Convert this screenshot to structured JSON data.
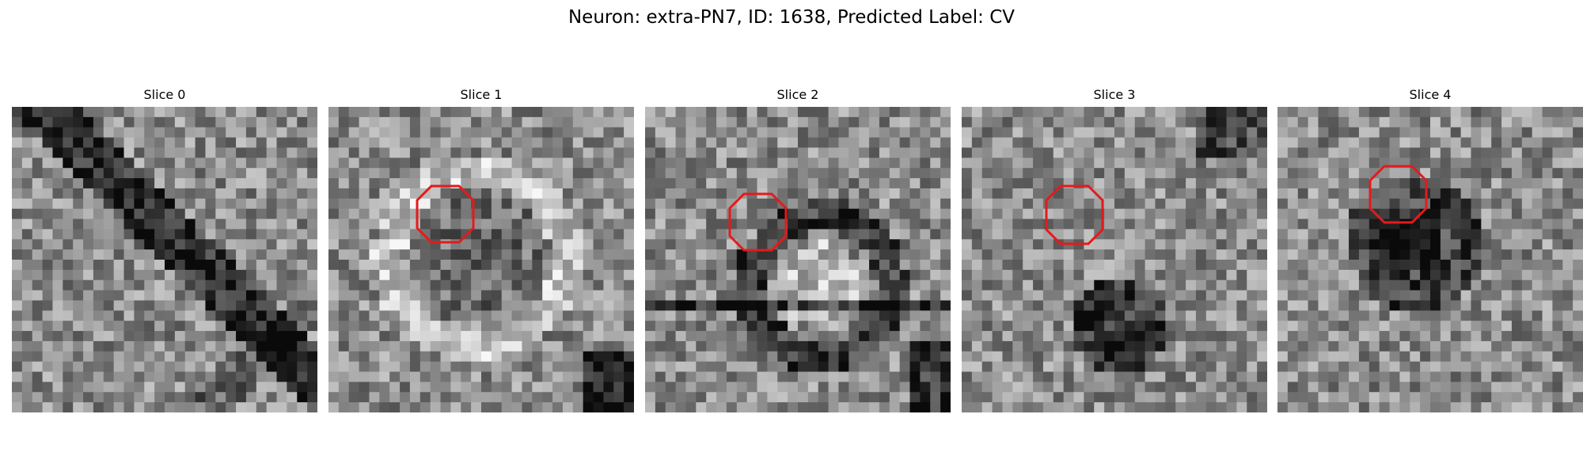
{
  "figure": {
    "title": "Neuron: extra-PN7, ID: 1638, Predicted Label: CV"
  },
  "colors": {
    "background": "#ffffff",
    "roi_outline": "#e41a1c",
    "image_colormap": "gray"
  },
  "panels": [
    {
      "title": "Slice 0",
      "has_roi": false,
      "content": "grayscale-microscopy-patch"
    },
    {
      "title": "Slice 1",
      "has_roi": true,
      "roi_shape": "octagon",
      "content": "grayscale-microscopy-patch"
    },
    {
      "title": "Slice 2",
      "has_roi": true,
      "roi_shape": "octagon",
      "content": "grayscale-microscopy-patch"
    },
    {
      "title": "Slice 3",
      "has_roi": true,
      "roi_shape": "octagon",
      "content": "grayscale-microscopy-patch"
    },
    {
      "title": "Slice 4",
      "has_roi": true,
      "roi_shape": "octagon",
      "content": "grayscale-microscopy-patch"
    }
  ]
}
